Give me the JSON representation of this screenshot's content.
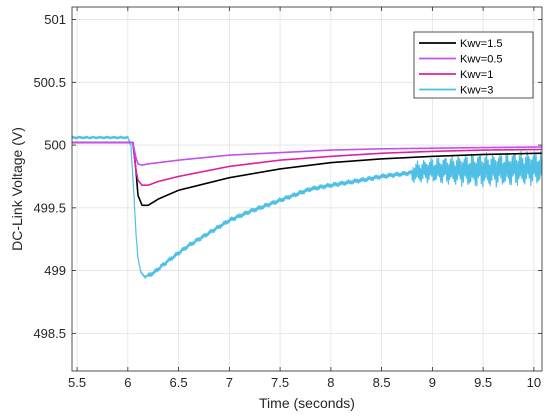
{
  "chart_data": {
    "type": "line",
    "title": "",
    "xlabel": "Time (seconds)",
    "ylabel": "DC-Link Voltage (V)",
    "xlim": [
      5.45,
      10.08
    ],
    "ylim": [
      498.2,
      501.1
    ],
    "x_ticks": [
      5.5,
      6,
      6.5,
      7,
      7.5,
      8,
      8.5,
      9,
      9.5,
      10
    ],
    "x_tick_labels": [
      "5.5",
      "6",
      "6.5",
      "7",
      "7.5",
      "8",
      "8.5",
      "9",
      "9.5",
      "10"
    ],
    "y_ticks": [
      498.5,
      499,
      499.5,
      500,
      500.5,
      501
    ],
    "y_tick_labels": [
      "498.5",
      "499",
      "499.5",
      "500",
      "500.5",
      "501"
    ],
    "grid": true,
    "legend_position": "top-right",
    "series": [
      {
        "name": "Kwv=1.5",
        "color": "#000000",
        "points": [
          [
            5.45,
            500.02
          ],
          [
            5.9,
            500.02
          ],
          [
            6.05,
            500.02
          ],
          [
            6.08,
            499.8
          ],
          [
            6.1,
            499.6
          ],
          [
            6.14,
            499.52
          ],
          [
            6.2,
            499.52
          ],
          [
            6.3,
            499.57
          ],
          [
            6.5,
            499.64
          ],
          [
            7.0,
            499.74
          ],
          [
            7.5,
            499.81
          ],
          [
            8.0,
            499.86
          ],
          [
            8.5,
            499.89
          ],
          [
            9.0,
            499.91
          ],
          [
            9.5,
            499.925
          ],
          [
            10.08,
            499.935
          ]
        ]
      },
      {
        "name": "Kwv=0.5",
        "color": "#c24ff0",
        "points": [
          [
            5.45,
            500.02
          ],
          [
            5.9,
            500.02
          ],
          [
            6.05,
            500.02
          ],
          [
            6.08,
            499.9
          ],
          [
            6.1,
            499.85
          ],
          [
            6.14,
            499.84
          ],
          [
            6.2,
            499.85
          ],
          [
            6.5,
            499.88
          ],
          [
            7.0,
            499.92
          ],
          [
            7.5,
            499.94
          ],
          [
            8.0,
            499.96
          ],
          [
            8.5,
            499.97
          ],
          [
            9.0,
            499.975
          ],
          [
            9.5,
            499.98
          ],
          [
            10.08,
            499.985
          ]
        ]
      },
      {
        "name": "Kwv=1",
        "color": "#e0209e",
        "points": [
          [
            5.45,
            500.02
          ],
          [
            5.9,
            500.02
          ],
          [
            6.05,
            500.02
          ],
          [
            6.08,
            499.8
          ],
          [
            6.1,
            499.72
          ],
          [
            6.14,
            499.68
          ],
          [
            6.2,
            499.68
          ],
          [
            6.3,
            499.71
          ],
          [
            6.5,
            499.75
          ],
          [
            7.0,
            499.83
          ],
          [
            7.5,
            499.88
          ],
          [
            8.0,
            499.91
          ],
          [
            8.5,
            499.935
          ],
          [
            9.0,
            499.95
          ],
          [
            9.5,
            499.96
          ],
          [
            10.08,
            499.965
          ]
        ]
      },
      {
        "name": "Kwv=3",
        "color": "#4fbfe6",
        "noise_after": 8.8,
        "points": [
          [
            5.45,
            500.06
          ],
          [
            5.9,
            500.06
          ],
          [
            6.0,
            500.06
          ],
          [
            6.03,
            500.0
          ],
          [
            6.06,
            499.6
          ],
          [
            6.08,
            499.3
          ],
          [
            6.1,
            499.1
          ],
          [
            6.13,
            498.98
          ],
          [
            6.17,
            498.95
          ],
          [
            6.25,
            498.98
          ],
          [
            6.4,
            499.08
          ],
          [
            6.6,
            499.2
          ],
          [
            6.8,
            499.3
          ],
          [
            7.0,
            499.4
          ],
          [
            7.2,
            499.47
          ],
          [
            7.5,
            499.56
          ],
          [
            7.8,
            499.65
          ],
          [
            8.0,
            499.68
          ],
          [
            8.3,
            499.72
          ],
          [
            8.5,
            499.75
          ],
          [
            8.8,
            499.78
          ],
          [
            9.0,
            499.8
          ],
          [
            9.5,
            499.8
          ],
          [
            10.08,
            499.82
          ]
        ]
      }
    ]
  }
}
